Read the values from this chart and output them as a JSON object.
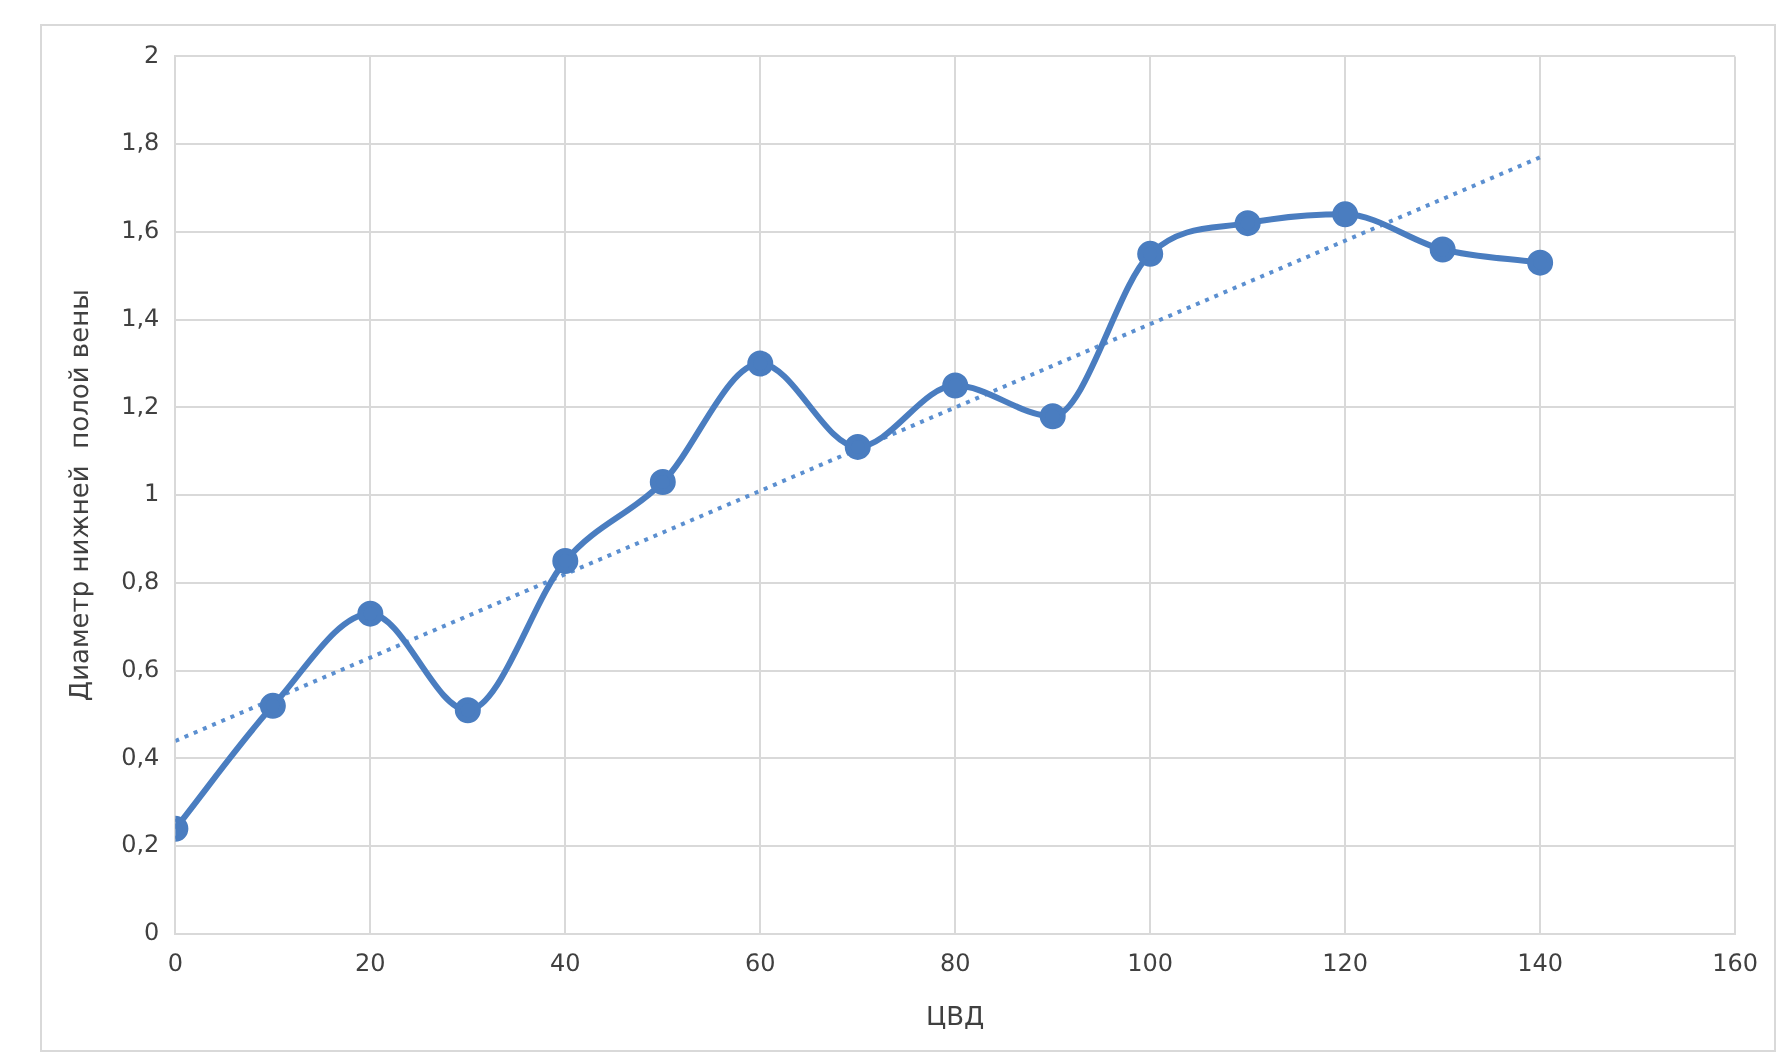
{
  "chart_data": {
    "type": "line",
    "xlabel": "ЦВД",
    "ylabel": "Диаметр нижней  полой вены",
    "x": [
      0,
      10,
      20,
      30,
      40,
      50,
      60,
      70,
      80,
      90,
      100,
      110,
      120,
      130,
      140
    ],
    "series": [
      {
        "color": "#4a7dc0",
        "marker": "circle",
        "line_style": "solid",
        "values": [
          0.24,
          0.52,
          0.73,
          0.51,
          0.85,
          1.03,
          1.3,
          1.11,
          1.25,
          1.18,
          1.55,
          1.62,
          1.64,
          1.56,
          1.53
        ]
      },
      {
        "type": "line",
        "color": "#5b8fd0",
        "marker": "none",
        "line_style": "dotted",
        "x": [
          0,
          140
        ],
        "values": [
          0.44,
          1.77
        ]
      }
    ],
    "xlim": [
      0,
      160
    ],
    "xticks": [
      0,
      20,
      40,
      60,
      80,
      100,
      120,
      140,
      160
    ],
    "ylim": [
      0,
      2
    ],
    "yticks": [
      0,
      {
        "value": 0.2,
        "label": "0,2"
      },
      {
        "value": 0.4,
        "label": "0,4"
      },
      {
        "value": 0.6,
        "label": "0,6"
      },
      {
        "value": 0.8,
        "label": "0,8"
      },
      1,
      {
        "value": 1.2,
        "label": "1,2"
      },
      {
        "value": 1.4,
        "label": "1,4"
      },
      {
        "value": 1.6,
        "label": "1,6"
      },
      {
        "value": 1.8,
        "label": "1,8"
      },
      2
    ],
    "grid": true,
    "legend": false
  }
}
